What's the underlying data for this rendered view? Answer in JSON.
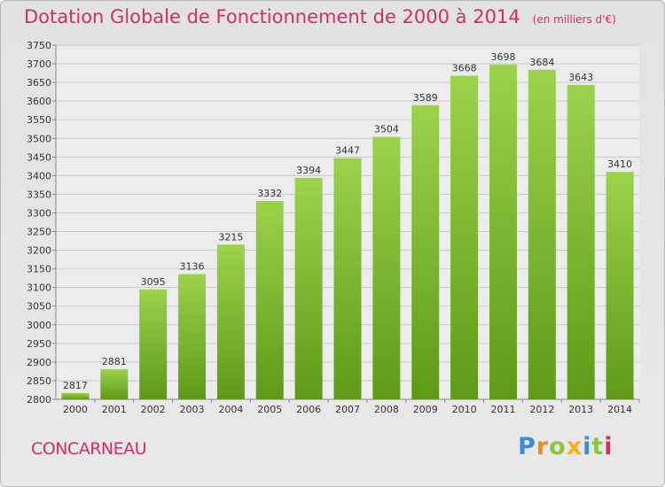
{
  "title": "Dotation Globale de Fonctionnement de 2000 à 2014",
  "unit": "(en milliers d'€)",
  "city": "CONCARNEAU",
  "logo": {
    "letters": [
      {
        "ch": "P",
        "color": "#3a8fd8"
      },
      {
        "ch": "r",
        "color": "#f08a1c"
      },
      {
        "ch": "o",
        "color": "#8cc63f"
      },
      {
        "ch": "x",
        "color": "#f2b21b"
      },
      {
        "ch": "i",
        "color": "#3a8fd8"
      },
      {
        "ch": "t",
        "color": "#8cc63f"
      },
      {
        "ch": "i",
        "color": "#d0305f"
      }
    ]
  },
  "chart_data": {
    "type": "bar",
    "title": "Dotation Globale de Fonctionnement de 2000 à 2014",
    "ylabel": "",
    "xlabel": "",
    "categories": [
      "2000",
      "2001",
      "2002",
      "2003",
      "2004",
      "2005",
      "2006",
      "2007",
      "2008",
      "2009",
      "2010",
      "2011",
      "2012",
      "2013",
      "2014"
    ],
    "values": [
      2817,
      2881,
      3095,
      3136,
      3215,
      3332,
      3394,
      3447,
      3504,
      3589,
      3668,
      3698,
      3684,
      3643,
      3410
    ],
    "ylim": [
      2800,
      3750
    ],
    "yticks": [
      2800,
      2850,
      2900,
      2950,
      3000,
      3050,
      3100,
      3150,
      3200,
      3250,
      3300,
      3350,
      3400,
      3450,
      3500,
      3550,
      3600,
      3650,
      3700,
      3750
    ],
    "grid": true,
    "colors": {
      "bar_top": "#9cd24c",
      "bar_bottom": "#5e9a18",
      "title": "#d0305f"
    }
  }
}
